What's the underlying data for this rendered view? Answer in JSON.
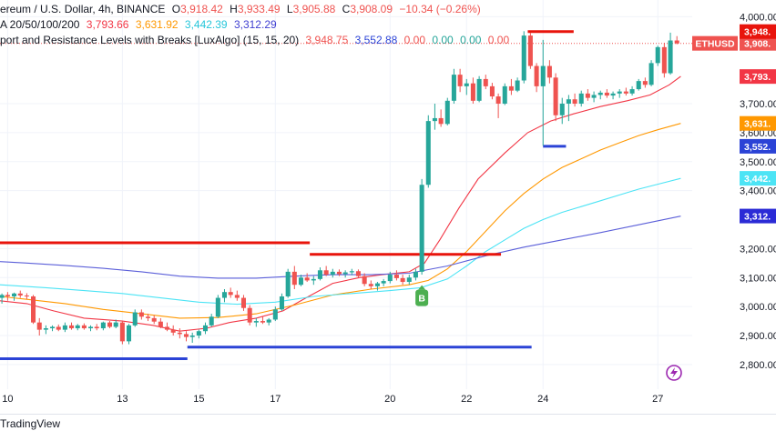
{
  "legend": {
    "symbol_title": "ereum / U.S. Dollar, 4h, BINANCE",
    "open_label": "O",
    "open_value": "3,918.42",
    "high_label": "H",
    "high_value": "3,933.49",
    "low_label": "L",
    "low_value": "3,905.88",
    "close_label": "C",
    "close_value": "3,908.09",
    "change": "−10.34 (−0.26%)",
    "ma_label": "A 20/50/100/200",
    "ma20": "3,793.66",
    "ma50": "3,631.92",
    "ma100": "3,442.39",
    "ma200": "3,312.29",
    "sr_label": "port and Resistance Levels with Breaks [LuxAlgo] (15, 15, 20)",
    "sr_resistance": "3,948.75",
    "sr_support": "3,552.88",
    "sr_z1": "0.00",
    "sr_z2": "0.00",
    "sr_z3": "0.00",
    "sr_z4": "0.00"
  },
  "watermark": "TradingView",
  "colors": {
    "up": "#26a69a",
    "down": "#ef5350",
    "ma20": "#f23645",
    "ma50": "#ff9800",
    "ma100": "#4ce4f5",
    "ma200": "#5b5fd9",
    "resistance": "#e8140c",
    "support": "#2b43d6",
    "grid": "#f0f3fa"
  },
  "chart_data": {
    "type": "candlestick",
    "symbol": "ETHUSD",
    "timeframe": "4h",
    "ylim": [
      2740,
      4020
    ],
    "y_ticks": [
      2800,
      2900,
      3000,
      3100,
      3200,
      3400,
      3500,
      3600,
      3700,
      4000
    ],
    "y_tick_labels": [
      "2,800.00",
      "2,900.00",
      "3,000.00",
      "3,100.00",
      "3,200.00",
      "3,400.00",
      "3,500.00",
      "3,600.00",
      "3,700.00",
      "4,000.00"
    ],
    "x_ticks": [
      10,
      13,
      15,
      17,
      20,
      22,
      24,
      27
    ],
    "x_tick_labels": [
      "10",
      "13",
      "15",
      "17",
      "20",
      "22",
      "24",
      "27"
    ],
    "x_range": [
      9.8,
      27.9
    ],
    "price_badges": [
      {
        "label": "ETHUSD",
        "value": "3,908.",
        "price": 3908.09,
        "color": "#ef5350"
      },
      {
        "label": "",
        "value": "3,948.",
        "price": 3948.75,
        "color": "#e8140c"
      },
      {
        "label": "",
        "value": "3,793.",
        "price": 3793.66,
        "color": "#f23645"
      },
      {
        "label": "",
        "value": "3,631.",
        "price": 3631.92,
        "color": "#ff9800"
      },
      {
        "label": "",
        "value": "3,552.",
        "price": 3552.88,
        "color": "#2b43d6"
      },
      {
        "label": "",
        "value": "3,442.",
        "price": 3442.39,
        "color": "#4ce4f5"
      },
      {
        "label": "",
        "value": "3,312.",
        "price": 3312.29,
        "color": "#2b2bd6"
      }
    ],
    "candles": [
      {
        "x": 9.85,
        "o": 3030,
        "h": 3045,
        "l": 3010,
        "c": 3040
      },
      {
        "x": 10.0,
        "o": 3040,
        "h": 3050,
        "l": 3020,
        "c": 3035
      },
      {
        "x": 10.17,
        "o": 3035,
        "h": 3048,
        "l": 3020,
        "c": 3045
      },
      {
        "x": 10.33,
        "o": 3045,
        "h": 3055,
        "l": 3030,
        "c": 3038
      },
      {
        "x": 10.5,
        "o": 3038,
        "h": 3046,
        "l": 3025,
        "c": 3035
      },
      {
        "x": 10.67,
        "o": 3035,
        "h": 3040,
        "l": 2940,
        "c": 2945
      },
      {
        "x": 10.83,
        "o": 2945,
        "h": 2960,
        "l": 2900,
        "c": 2920
      },
      {
        "x": 11.0,
        "o": 2920,
        "h": 2935,
        "l": 2905,
        "c": 2925
      },
      {
        "x": 11.17,
        "o": 2925,
        "h": 2935,
        "l": 2915,
        "c": 2930
      },
      {
        "x": 11.33,
        "o": 2930,
        "h": 2938,
        "l": 2915,
        "c": 2920
      },
      {
        "x": 11.5,
        "o": 2920,
        "h": 2945,
        "l": 2912,
        "c": 2935
      },
      {
        "x": 11.67,
        "o": 2935,
        "h": 2945,
        "l": 2920,
        "c": 2925
      },
      {
        "x": 11.83,
        "o": 2925,
        "h": 2940,
        "l": 2918,
        "c": 2935
      },
      {
        "x": 12.0,
        "o": 2935,
        "h": 2942,
        "l": 2920,
        "c": 2925
      },
      {
        "x": 12.17,
        "o": 2925,
        "h": 2935,
        "l": 2915,
        "c": 2930
      },
      {
        "x": 12.33,
        "o": 2930,
        "h": 2940,
        "l": 2918,
        "c": 2925
      },
      {
        "x": 12.5,
        "o": 2925,
        "h": 2948,
        "l": 2918,
        "c": 2945
      },
      {
        "x": 12.67,
        "o": 2945,
        "h": 2950,
        "l": 2925,
        "c": 2930
      },
      {
        "x": 12.83,
        "o": 2930,
        "h": 2955,
        "l": 2925,
        "c": 2945
      },
      {
        "x": 13.0,
        "o": 2945,
        "h": 2950,
        "l": 2870,
        "c": 2880
      },
      {
        "x": 13.17,
        "o": 2880,
        "h": 2940,
        "l": 2870,
        "c": 2935
      },
      {
        "x": 13.33,
        "o": 2935,
        "h": 2990,
        "l": 2930,
        "c": 2980
      },
      {
        "x": 13.5,
        "o": 2980,
        "h": 2990,
        "l": 2955,
        "c": 2965
      },
      {
        "x": 13.67,
        "o": 2965,
        "h": 2975,
        "l": 2950,
        "c": 2960
      },
      {
        "x": 13.83,
        "o": 2960,
        "h": 2970,
        "l": 2940,
        "c": 2948
      },
      {
        "x": 14.0,
        "o": 2948,
        "h": 2960,
        "l": 2925,
        "c": 2930
      },
      {
        "x": 14.17,
        "o": 2930,
        "h": 2945,
        "l": 2915,
        "c": 2920
      },
      {
        "x": 14.33,
        "o": 2920,
        "h": 2935,
        "l": 2900,
        "c": 2910
      },
      {
        "x": 14.5,
        "o": 2910,
        "h": 2925,
        "l": 2890,
        "c": 2905
      },
      {
        "x": 14.67,
        "o": 2905,
        "h": 2915,
        "l": 2880,
        "c": 2895
      },
      {
        "x": 14.83,
        "o": 2895,
        "h": 2910,
        "l": 2875,
        "c": 2900
      },
      {
        "x": 15.0,
        "o": 2900,
        "h": 2920,
        "l": 2890,
        "c": 2915
      },
      {
        "x": 15.17,
        "o": 2915,
        "h": 2945,
        "l": 2905,
        "c": 2935
      },
      {
        "x": 15.33,
        "o": 2935,
        "h": 2975,
        "l": 2930,
        "c": 2965
      },
      {
        "x": 15.5,
        "o": 2965,
        "h": 3040,
        "l": 2960,
        "c": 3030
      },
      {
        "x": 15.67,
        "o": 3030,
        "h": 3060,
        "l": 3015,
        "c": 3050
      },
      {
        "x": 15.83,
        "o": 3050,
        "h": 3065,
        "l": 3030,
        "c": 3040
      },
      {
        "x": 16.0,
        "o": 3040,
        "h": 3055,
        "l": 3020,
        "c": 3030
      },
      {
        "x": 16.17,
        "o": 3030,
        "h": 3040,
        "l": 2985,
        "c": 2995
      },
      {
        "x": 16.33,
        "o": 2995,
        "h": 3005,
        "l": 2935,
        "c": 2945
      },
      {
        "x": 16.5,
        "o": 2945,
        "h": 2960,
        "l": 2930,
        "c": 2950
      },
      {
        "x": 16.67,
        "o": 2950,
        "h": 2965,
        "l": 2940,
        "c": 2945
      },
      {
        "x": 16.83,
        "o": 2945,
        "h": 2960,
        "l": 2935,
        "c": 2955
      },
      {
        "x": 17.0,
        "o": 2955,
        "h": 3000,
        "l": 2950,
        "c": 2990
      },
      {
        "x": 17.17,
        "o": 2990,
        "h": 3045,
        "l": 2985,
        "c": 3035
      },
      {
        "x": 17.33,
        "o": 3035,
        "h": 3130,
        "l": 3030,
        "c": 3120
      },
      {
        "x": 17.5,
        "o": 3120,
        "h": 3140,
        "l": 3060,
        "c": 3075
      },
      {
        "x": 17.67,
        "o": 3075,
        "h": 3110,
        "l": 3070,
        "c": 3100
      },
      {
        "x": 17.83,
        "o": 3100,
        "h": 3115,
        "l": 3085,
        "c": 3090
      },
      {
        "x": 18.0,
        "o": 3090,
        "h": 3105,
        "l": 3075,
        "c": 3095
      },
      {
        "x": 18.17,
        "o": 3095,
        "h": 3135,
        "l": 3090,
        "c": 3125
      },
      {
        "x": 18.33,
        "o": 3125,
        "h": 3140,
        "l": 3105,
        "c": 3110
      },
      {
        "x": 18.5,
        "o": 3110,
        "h": 3130,
        "l": 3100,
        "c": 3120
      },
      {
        "x": 18.67,
        "o": 3120,
        "h": 3128,
        "l": 3105,
        "c": 3112
      },
      {
        "x": 18.83,
        "o": 3112,
        "h": 3125,
        "l": 3100,
        "c": 3118
      },
      {
        "x": 19.0,
        "o": 3118,
        "h": 3130,
        "l": 3108,
        "c": 3122
      },
      {
        "x": 19.17,
        "o": 3122,
        "h": 3128,
        "l": 3100,
        "c": 3105
      },
      {
        "x": 19.33,
        "o": 3105,
        "h": 3115,
        "l": 3070,
        "c": 3078
      },
      {
        "x": 19.5,
        "o": 3078,
        "h": 3090,
        "l": 3060,
        "c": 3070
      },
      {
        "x": 19.67,
        "o": 3070,
        "h": 3085,
        "l": 3055,
        "c": 3080
      },
      {
        "x": 19.83,
        "o": 3080,
        "h": 3095,
        "l": 3070,
        "c": 3088
      },
      {
        "x": 20.0,
        "o": 3088,
        "h": 3120,
        "l": 3080,
        "c": 3110
      },
      {
        "x": 20.17,
        "o": 3110,
        "h": 3125,
        "l": 3090,
        "c": 3098
      },
      {
        "x": 20.33,
        "o": 3098,
        "h": 3110,
        "l": 3075,
        "c": 3085
      },
      {
        "x": 20.5,
        "o": 3085,
        "h": 3110,
        "l": 3075,
        "c": 3100
      },
      {
        "x": 20.67,
        "o": 3100,
        "h": 3130,
        "l": 3090,
        "c": 3120
      },
      {
        "x": 20.83,
        "o": 3120,
        "h": 3440,
        "l": 3110,
        "c": 3420
      },
      {
        "x": 21.0,
        "o": 3420,
        "h": 3660,
        "l": 3410,
        "c": 3640
      },
      {
        "x": 21.17,
        "o": 3640,
        "h": 3700,
        "l": 3610,
        "c": 3650
      },
      {
        "x": 21.33,
        "o": 3650,
        "h": 3680,
        "l": 3620,
        "c": 3630
      },
      {
        "x": 21.5,
        "o": 3630,
        "h": 3720,
        "l": 3625,
        "c": 3710
      },
      {
        "x": 21.67,
        "o": 3710,
        "h": 3820,
        "l": 3700,
        "c": 3800
      },
      {
        "x": 21.83,
        "o": 3800,
        "h": 3820,
        "l": 3740,
        "c": 3760
      },
      {
        "x": 22.0,
        "o": 3760,
        "h": 3785,
        "l": 3730,
        "c": 3770
      },
      {
        "x": 22.17,
        "o": 3770,
        "h": 3790,
        "l": 3700,
        "c": 3710
      },
      {
        "x": 22.33,
        "o": 3710,
        "h": 3795,
        "l": 3705,
        "c": 3785
      },
      {
        "x": 22.5,
        "o": 3785,
        "h": 3800,
        "l": 3750,
        "c": 3760
      },
      {
        "x": 22.67,
        "o": 3760,
        "h": 3772,
        "l": 3715,
        "c": 3725
      },
      {
        "x": 22.83,
        "o": 3725,
        "h": 3735,
        "l": 3650,
        "c": 3700
      },
      {
        "x": 23.0,
        "o": 3700,
        "h": 3770,
        "l": 3695,
        "c": 3760
      },
      {
        "x": 23.17,
        "o": 3760,
        "h": 3785,
        "l": 3730,
        "c": 3745
      },
      {
        "x": 23.33,
        "o": 3745,
        "h": 3790,
        "l": 3740,
        "c": 3780
      },
      {
        "x": 23.5,
        "o": 3780,
        "h": 3950,
        "l": 3770,
        "c": 3935
      },
      {
        "x": 23.67,
        "o": 3935,
        "h": 3945,
        "l": 3820,
        "c": 3830
      },
      {
        "x": 23.83,
        "o": 3830,
        "h": 3840,
        "l": 3740,
        "c": 3760
      },
      {
        "x": 24.0,
        "o": 3760,
        "h": 3920,
        "l": 3555,
        "c": 3830
      },
      {
        "x": 24.17,
        "o": 3830,
        "h": 3850,
        "l": 3770,
        "c": 3790
      },
      {
        "x": 24.33,
        "o": 3790,
        "h": 3805,
        "l": 3640,
        "c": 3660
      },
      {
        "x": 24.5,
        "o": 3660,
        "h": 3720,
        "l": 3630,
        "c": 3700
      },
      {
        "x": 24.67,
        "o": 3700,
        "h": 3730,
        "l": 3640,
        "c": 3715
      },
      {
        "x": 24.83,
        "o": 3715,
        "h": 3735,
        "l": 3690,
        "c": 3700
      },
      {
        "x": 25.0,
        "o": 3700,
        "h": 3745,
        "l": 3690,
        "c": 3735
      },
      {
        "x": 25.17,
        "o": 3735,
        "h": 3750,
        "l": 3710,
        "c": 3720
      },
      {
        "x": 25.33,
        "o": 3720,
        "h": 3742,
        "l": 3705,
        "c": 3730
      },
      {
        "x": 25.5,
        "o": 3730,
        "h": 3745,
        "l": 3715,
        "c": 3738
      },
      {
        "x": 25.67,
        "o": 3738,
        "h": 3750,
        "l": 3720,
        "c": 3728
      },
      {
        "x": 25.83,
        "o": 3728,
        "h": 3742,
        "l": 3715,
        "c": 3735
      },
      {
        "x": 26.0,
        "o": 3735,
        "h": 3750,
        "l": 3720,
        "c": 3742
      },
      {
        "x": 26.17,
        "o": 3742,
        "h": 3755,
        "l": 3728,
        "c": 3735
      },
      {
        "x": 26.33,
        "o": 3735,
        "h": 3760,
        "l": 3728,
        "c": 3750
      },
      {
        "x": 26.5,
        "o": 3750,
        "h": 3785,
        "l": 3745,
        "c": 3778
      },
      {
        "x": 26.67,
        "o": 3778,
        "h": 3790,
        "l": 3755,
        "c": 3765
      },
      {
        "x": 26.83,
        "o": 3765,
        "h": 3850,
        "l": 3760,
        "c": 3840
      },
      {
        "x": 27.0,
        "o": 3840,
        "h": 3900,
        "l": 3830,
        "c": 3895
      },
      {
        "x": 27.17,
        "o": 3895,
        "h": 3910,
        "l": 3790,
        "c": 3805
      },
      {
        "x": 27.33,
        "o": 3805,
        "h": 3945,
        "l": 3800,
        "c": 3918
      },
      {
        "x": 27.5,
        "o": 3918,
        "h": 3933,
        "l": 3905,
        "c": 3908
      }
    ],
    "series": [
      {
        "name": "MA 20",
        "color": "#f23645",
        "x": [
          9.8,
          10.5,
          11.2,
          12,
          13,
          13.8,
          14.5,
          15.2,
          15.8,
          16.5,
          17.2,
          17.8,
          18.5,
          19.2,
          19.8,
          20.5,
          20.9,
          21.3,
          21.8,
          22.3,
          23,
          23.6,
          24.2,
          24.8,
          25.5,
          26.2,
          26.8,
          27.3,
          27.6
        ],
        "y": [
          3020,
          3010,
          2985,
          2960,
          2950,
          2935,
          2915,
          2925,
          2945,
          2960,
          2985,
          3030,
          3080,
          3100,
          3110,
          3120,
          3150,
          3230,
          3340,
          3440,
          3530,
          3600,
          3640,
          3665,
          3690,
          3710,
          3730,
          3765,
          3794
        ]
      },
      {
        "name": "MA 50",
        "color": "#ff9800",
        "x": [
          9.8,
          10.5,
          11.5,
          12.5,
          13.5,
          14.5,
          15.5,
          16.5,
          17.5,
          18.5,
          19.5,
          20.5,
          21,
          21.5,
          22,
          22.5,
          23,
          23.5,
          24,
          24.5,
          25,
          25.5,
          26,
          26.5,
          27,
          27.6
        ],
        "y": [
          3035,
          3025,
          3010,
          2990,
          2975,
          2960,
          2962,
          2975,
          3005,
          3040,
          3060,
          3075,
          3090,
          3130,
          3190,
          3260,
          3330,
          3390,
          3440,
          3480,
          3510,
          3540,
          3565,
          3590,
          3610,
          3632
        ]
      },
      {
        "name": "MA 100",
        "color": "#4ce4f5",
        "x": [
          9.8,
          11,
          12,
          13,
          14,
          15,
          16,
          17,
          18,
          19,
          20,
          20.8,
          21.5,
          22,
          22.5,
          23,
          23.5,
          24,
          24.5,
          25,
          25.5,
          26,
          26.5,
          27,
          27.6
        ],
        "y": [
          3075,
          3065,
          3055,
          3045,
          3030,
          3015,
          3008,
          3015,
          3035,
          3045,
          3055,
          3065,
          3095,
          3140,
          3190,
          3230,
          3270,
          3300,
          3325,
          3345,
          3365,
          3385,
          3405,
          3422,
          3442
        ]
      },
      {
        "name": "MA 200",
        "color": "#5b5fd9",
        "x": [
          9.8,
          10.5,
          11.5,
          12.5,
          13.5,
          14.5,
          15.5,
          16.5,
          17.5,
          18.5,
          19.5,
          20.5,
          21.5,
          22.5,
          23.5,
          24.5,
          25.5,
          26.5,
          27.6
        ],
        "y": [
          3155,
          3150,
          3142,
          3132,
          3120,
          3105,
          3098,
          3098,
          3105,
          3110,
          3110,
          3115,
          3140,
          3175,
          3205,
          3230,
          3255,
          3282,
          3312
        ]
      }
    ],
    "levels": [
      {
        "type": "resistance",
        "price": 3220,
        "x0": 9.8,
        "x1": 17.9
      },
      {
        "type": "resistance",
        "price": 3180,
        "x0": 17.9,
        "x1": 22.9
      },
      {
        "type": "resistance",
        "price": 3948.75,
        "x0": 23.6,
        "x1": 24.8
      },
      {
        "type": "support",
        "price": 2820,
        "x0": 9.8,
        "x1": 14.7
      },
      {
        "type": "support",
        "price": 2860,
        "x0": 14.7,
        "x1": 23.7
      },
      {
        "type": "support",
        "price": 3552.88,
        "x0": 24.0,
        "x1": 24.6
      }
    ],
    "break_labels": [
      {
        "text": "B",
        "x": 20.83,
        "price": 3030
      }
    ]
  }
}
